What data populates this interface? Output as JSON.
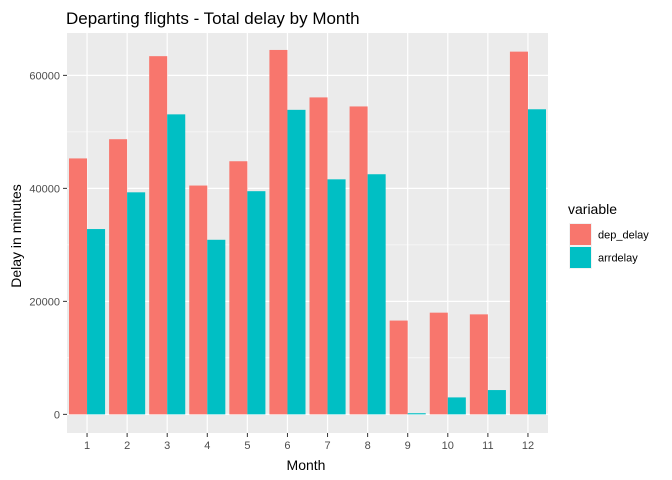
{
  "chart_data": {
    "type": "bar",
    "title": "Departing flights - Total delay by Month",
    "xlabel": "Month",
    "ylabel": "Delay in minutes",
    "categories": [
      "1",
      "2",
      "3",
      "4",
      "5",
      "6",
      "7",
      "8",
      "9",
      "10",
      "11",
      "12"
    ],
    "series": [
      {
        "name": "dep_delay",
        "color": "#f8766d",
        "values": [
          45300,
          48700,
          63400,
          40500,
          44800,
          64500,
          56100,
          54500,
          16600,
          18000,
          17700,
          64200
        ]
      },
      {
        "name": "arrdelay",
        "color": "#00bfc4",
        "values": [
          32800,
          39300,
          53100,
          30900,
          39500,
          53900,
          41600,
          42500,
          200,
          3000,
          4300,
          54000
        ]
      }
    ],
    "yticks": [
      0,
      20000,
      40000,
      60000
    ],
    "ylim": [
      -3300,
      67500
    ],
    "grid": true,
    "background": "#ebebeb",
    "legend": {
      "title": "variable",
      "position": "right"
    }
  }
}
